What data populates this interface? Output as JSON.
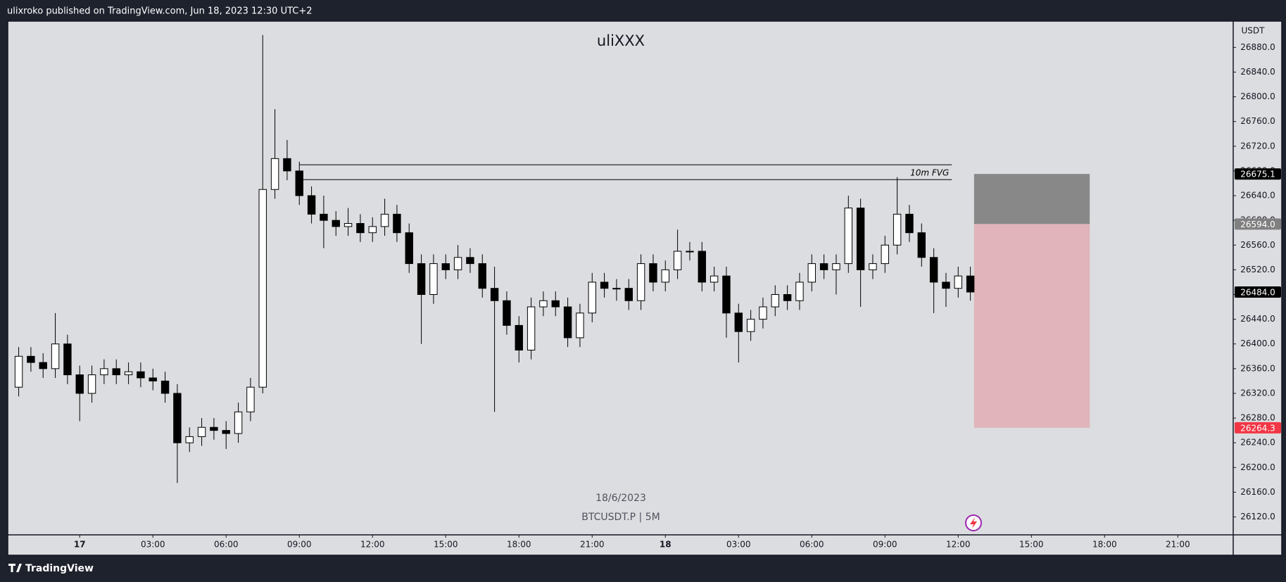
{
  "header": {
    "text": "ulixroko published on TradingView.com, Jun 18, 2023 12:30 UTC+2"
  },
  "footer": {
    "brand": "TradingView"
  },
  "chart_data": {
    "type": "candlestick",
    "title": "uliXXX",
    "watermark_date": "18/6/2023",
    "watermark_symbol": "BTCUSDT.P | 5M",
    "y_unit": "USDT",
    "up_color": "#ffffff",
    "down_color": "#000000",
    "wick_color": "#000000",
    "grid": false,
    "xlim": [
      -2.92,
      47.27
    ],
    "ylim": [
      26091,
      26922.5
    ],
    "xticks": [
      {
        "value": 0,
        "label": "17"
      },
      {
        "value": 3,
        "label": "03:00"
      },
      {
        "value": 6,
        "label": "06:00"
      },
      {
        "value": 9,
        "label": "09:00"
      },
      {
        "value": 12,
        "label": "12:00"
      },
      {
        "value": 15,
        "label": "15:00"
      },
      {
        "value": 18,
        "label": "18:00"
      },
      {
        "value": 21,
        "label": "21:00"
      },
      {
        "value": 24,
        "label": "18"
      },
      {
        "value": 27,
        "label": "03:00"
      },
      {
        "value": 30,
        "label": "06:00"
      },
      {
        "value": 33,
        "label": "09:00"
      },
      {
        "value": 36,
        "label": "12:00"
      },
      {
        "value": 39,
        "label": "15:00"
      },
      {
        "value": 42,
        "label": "18:00"
      },
      {
        "value": 45,
        "label": "21:00"
      }
    ],
    "yticks": [
      {
        "value": 26120,
        "label": "26120.0"
      },
      {
        "value": 26160,
        "label": "26160.0"
      },
      {
        "value": 26200,
        "label": "26200.0"
      },
      {
        "value": 26240,
        "label": "26240.0"
      },
      {
        "value": 26280,
        "label": "26280.0"
      },
      {
        "value": 26320,
        "label": "26320.0"
      },
      {
        "value": 26360,
        "label": "26360.0"
      },
      {
        "value": 26400,
        "label": "26400.0"
      },
      {
        "value": 26440,
        "label": "26440.0"
      },
      {
        "value": 26480,
        "label": "26480.0"
      },
      {
        "value": 26520,
        "label": "26520.0"
      },
      {
        "value": 26560,
        "label": "26560.0"
      },
      {
        "value": 26600,
        "label": "26600.0"
      },
      {
        "value": 26640,
        "label": "26640.0"
      },
      {
        "value": 26680,
        "label": "26680.0"
      },
      {
        "value": 26720,
        "label": "26720.0"
      },
      {
        "value": 26760,
        "label": "26760.0"
      },
      {
        "value": 26800,
        "label": "26800.0"
      },
      {
        "value": 26840,
        "label": "26840.0"
      },
      {
        "value": 26880,
        "label": "26880.0"
      }
    ],
    "x": [
      -2.5,
      -2,
      -1.5,
      -1,
      -0.5,
      0,
      0.5,
      1,
      1.5,
      2,
      2.5,
      3,
      3.5,
      4,
      4.5,
      5,
      5.5,
      6,
      6.5,
      7,
      7.5,
      8,
      8.5,
      9,
      9.5,
      10,
      10.5,
      11,
      11.5,
      12,
      12.5,
      13,
      13.5,
      14,
      14.5,
      15,
      15.5,
      16,
      16.5,
      17,
      17.5,
      18,
      18.5,
      19,
      19.5,
      20,
      20.5,
      21,
      21.5,
      22,
      22.5,
      23,
      23.5,
      24,
      24.5,
      25,
      25.5,
      26,
      26.5,
      27,
      27.5,
      28,
      28.5,
      29,
      29.5,
      30,
      30.5,
      31,
      31.5,
      32,
      32.5,
      33,
      33.5,
      34,
      34.5,
      35,
      35.5,
      36,
      36.5
    ],
    "open": [
      26330,
      26380,
      26370,
      26360,
      26400,
      26350,
      26320,
      26350,
      26360,
      26350,
      26355,
      26345,
      26340,
      26320,
      26240,
      26250,
      26265,
      26260,
      26255,
      26290,
      26330,
      26650,
      26700,
      26680,
      26640,
      26610,
      26600,
      26590,
      26595,
      26580,
      26590,
      26610,
      26580,
      26530,
      26480,
      26530,
      26520,
      26540,
      26530,
      26490,
      26470,
      26430,
      26390,
      26460,
      26470,
      26460,
      26410,
      26450,
      26500,
      26490,
      26490,
      26470,
      26530,
      26500,
      26520,
      26550,
      26550,
      26500,
      26510,
      26450,
      26420,
      26440,
      26460,
      26480,
      26470,
      26500,
      26530,
      26520,
      26530,
      26620,
      26520,
      26530,
      26560,
      26610,
      26580,
      26540,
      26500,
      26490,
      26510
    ],
    "high": [
      26395,
      26395,
      26385,
      26450,
      26415,
      26365,
      26365,
      26375,
      26375,
      26370,
      26370,
      26360,
      26355,
      26335,
      26265,
      26280,
      26280,
      26275,
      26305,
      26345,
      26900,
      26780,
      26730,
      26695,
      26655,
      26640,
      26615,
      26620,
      26610,
      26605,
      26635,
      26625,
      26595,
      26545,
      26545,
      26545,
      26560,
      26555,
      26545,
      26525,
      26485,
      26445,
      26475,
      26485,
      26485,
      26475,
      26465,
      26515,
      26515,
      26505,
      26505,
      26545,
      26545,
      26535,
      26585,
      26565,
      26565,
      26525,
      26525,
      26465,
      26455,
      26475,
      26495,
      26495,
      26515,
      26545,
      26545,
      26545,
      26640,
      26635,
      26545,
      26575,
      26670,
      26625,
      26595,
      26555,
      26515,
      26525,
      26525
    ],
    "low": [
      26315,
      26355,
      26345,
      26345,
      26335,
      26275,
      26305,
      26335,
      26335,
      26335,
      26330,
      26325,
      26305,
      26175,
      26225,
      26235,
      26245,
      26230,
      26240,
      26275,
      26320,
      26635,
      26665,
      26625,
      26595,
      26555,
      26575,
      26575,
      26565,
      26565,
      26575,
      26565,
      26515,
      26400,
      26465,
      26505,
      26505,
      26515,
      26475,
      26290,
      26415,
      26370,
      26375,
      26445,
      26445,
      26395,
      26395,
      26435,
      26475,
      26470,
      26455,
      26455,
      26485,
      26485,
      26505,
      26535,
      26485,
      26485,
      26410,
      26370,
      26405,
      26425,
      26445,
      26455,
      26455,
      26485,
      26505,
      26480,
      26515,
      26460,
      26505,
      26515,
      26545,
      26565,
      26525,
      26450,
      26460,
      26475,
      26470
    ],
    "close": [
      26380,
      26370,
      26360,
      26400,
      26350,
      26320,
      26350,
      26360,
      26350,
      26355,
      26345,
      26340,
      26320,
      26240,
      26250,
      26265,
      26260,
      26255,
      26290,
      26330,
      26650,
      26700,
      26680,
      26640,
      26610,
      26600,
      26590,
      26595,
      26580,
      26590,
      26610,
      26580,
      26530,
      26480,
      26530,
      26520,
      26540,
      26530,
      26490,
      26470,
      26430,
      26390,
      26460,
      26470,
      26460,
      26410,
      26450,
      26500,
      26490,
      26490,
      26470,
      26530,
      26500,
      26520,
      26550,
      26550,
      26500,
      26510,
      26450,
      26420,
      26440,
      26460,
      26480,
      26470,
      26500,
      26530,
      26520,
      26530,
      26620,
      26520,
      26530,
      26560,
      26610,
      26580,
      26540,
      26500,
      26490,
      26510,
      26484
    ],
    "fvg": {
      "label": "10m FVG",
      "top": 26690,
      "bottom": 26666,
      "start": 9.0,
      "end": 35.74,
      "color": "#000000"
    },
    "position": {
      "start": 36.65,
      "end": 41.39,
      "stop": 26675.1,
      "entry": 26594.0,
      "target": 26264.3,
      "stop_color": "#888888",
      "target_color": "#e0b4ba"
    },
    "price_markers": [
      {
        "value": 26675.1,
        "label": "26675.1",
        "color": "#000000"
      },
      {
        "value": 26594.0,
        "label": "26594.0",
        "color": "#808080"
      },
      {
        "value": 26484.0,
        "label": "26484.0",
        "color": "#000000"
      },
      {
        "value": 26264.3,
        "label": "26264.3",
        "color": "#f23645"
      }
    ]
  }
}
